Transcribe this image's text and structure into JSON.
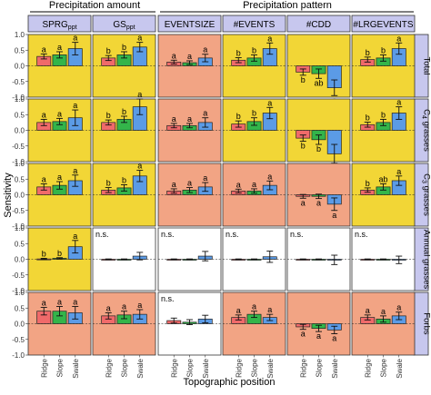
{
  "figure": {
    "group_headers": [
      "Precipitation amount",
      "Precipitation pattern"
    ],
    "ylabel": "Sensitivity",
    "xlabel": "Topographic position"
  },
  "colors": {
    "highlight_bg": "#f2d636",
    "neutral_bg": "#f2a484",
    "empty_bg": "#ffffff",
    "strip_bg": "#c7c7ee",
    "ridge": "#f06a6a",
    "slope": "#33b54a",
    "swale": "#5b9be6"
  },
  "chart_data": {
    "type": "bar",
    "categories": [
      "Ridge",
      "Slope",
      "Swale"
    ],
    "ylim": [
      -1,
      1
    ],
    "yticks": [
      "-1.0",
      "-0.5",
      "0.0",
      "0.5",
      "1.0"
    ],
    "columns": [
      {
        "label": "SPRG",
        "sub": "ppt"
      },
      {
        "label": "GS",
        "sub": "ppt"
      },
      {
        "label": "EVENTSIZE",
        "sub": ""
      },
      {
        "label": "#EVENTS",
        "sub": ""
      },
      {
        "label": "#CDD",
        "sub": ""
      },
      {
        "label": "#LRGEVENTS",
        "sub": ""
      }
    ],
    "rows": [
      "Total",
      "C4 grasses",
      "C3 grasses",
      "Annual grasses",
      "Forbs"
    ],
    "row_labels": [
      {
        "main": "Total",
        "sub": ""
      },
      {
        "main": "C",
        "sub": "4",
        "rest": " grasses"
      },
      {
        "main": "C",
        "sub": "3",
        "rest": " grasses"
      },
      {
        "main": "Annual grasses",
        "sub": ""
      },
      {
        "main": "Forbs",
        "sub": ""
      }
    ],
    "panels": [
      [
        {
          "bg": "highlight",
          "ns": false,
          "values": [
            0.3,
            0.35,
            0.55
          ],
          "errors": [
            0.08,
            0.1,
            0.2
          ],
          "letters": [
            "a",
            "a",
            "a"
          ]
        },
        {
          "bg": "highlight",
          "ns": false,
          "values": [
            0.25,
            0.35,
            0.6
          ],
          "errors": [
            0.08,
            0.1,
            0.15
          ],
          "letters": [
            "b",
            "b",
            "a"
          ]
        },
        {
          "bg": "neutral",
          "ns": false,
          "values": [
            0.12,
            0.1,
            0.25
          ],
          "errors": [
            0.06,
            0.06,
            0.12
          ],
          "letters": [
            "a",
            "a",
            "a"
          ]
        },
        {
          "bg": "highlight",
          "ns": false,
          "values": [
            0.18,
            0.25,
            0.55
          ],
          "errors": [
            0.08,
            0.1,
            0.18
          ],
          "letters": [
            "b",
            "b",
            "a"
          ]
        },
        {
          "bg": "highlight",
          "ns": false,
          "values": [
            -0.2,
            -0.25,
            -0.7
          ],
          "errors": [
            0.1,
            0.15,
            0.25
          ],
          "letters": [
            "b",
            "ab",
            "a"
          ]
        },
        {
          "bg": "highlight",
          "ns": false,
          "values": [
            0.2,
            0.25,
            0.55
          ],
          "errors": [
            0.08,
            0.1,
            0.18
          ],
          "letters": [
            "b",
            "b",
            "a"
          ]
        }
      ],
      [
        {
          "bg": "highlight",
          "ns": false,
          "values": [
            0.25,
            0.28,
            0.4
          ],
          "errors": [
            0.1,
            0.1,
            0.25
          ],
          "letters": [
            "a",
            "a",
            "a"
          ]
        },
        {
          "bg": "highlight",
          "ns": false,
          "values": [
            0.25,
            0.35,
            0.75
          ],
          "errors": [
            0.08,
            0.1,
            0.25
          ],
          "letters": [
            "b",
            "b",
            "a"
          ]
        },
        {
          "bg": "neutral",
          "ns": false,
          "values": [
            0.15,
            0.15,
            0.25
          ],
          "errors": [
            0.07,
            0.07,
            0.15
          ],
          "letters": [
            "a",
            "a",
            "a"
          ]
        },
        {
          "bg": "highlight",
          "ns": false,
          "values": [
            0.2,
            0.28,
            0.55
          ],
          "errors": [
            0.1,
            0.12,
            0.18
          ],
          "letters": [
            "b",
            "b",
            "a"
          ]
        },
        {
          "bg": "highlight",
          "ns": false,
          "values": [
            -0.25,
            -0.3,
            -0.75
          ],
          "errors": [
            0.1,
            0.15,
            0.3
          ],
          "letters": [
            "b",
            "b",
            "a"
          ]
        },
        {
          "bg": "highlight",
          "ns": false,
          "values": [
            0.18,
            0.25,
            0.55
          ],
          "errors": [
            0.08,
            0.1,
            0.2
          ],
          "letters": [
            "b",
            "b",
            "a"
          ]
        }
      ],
      [
        {
          "bg": "highlight",
          "ns": false,
          "values": [
            0.25,
            0.3,
            0.45
          ],
          "errors": [
            0.1,
            0.12,
            0.18
          ],
          "letters": [
            "a",
            "a",
            "a"
          ]
        },
        {
          "bg": "highlight",
          "ns": false,
          "values": [
            0.15,
            0.22,
            0.6
          ],
          "errors": [
            0.08,
            0.1,
            0.18
          ],
          "letters": [
            "b",
            "b",
            "a"
          ]
        },
        {
          "bg": "neutral",
          "ns": false,
          "values": [
            0.12,
            0.15,
            0.25
          ],
          "errors": [
            0.07,
            0.08,
            0.14
          ],
          "letters": [
            "a",
            "a",
            "a"
          ]
        },
        {
          "bg": "neutral",
          "ns": false,
          "values": [
            0.12,
            0.12,
            0.3
          ],
          "errors": [
            0.06,
            0.07,
            0.14
          ],
          "letters": [
            "a",
            "a",
            "a"
          ]
        },
        {
          "bg": "neutral",
          "ns": false,
          "values": [
            -0.05,
            -0.05,
            -0.3
          ],
          "errors": [
            0.06,
            0.07,
            0.2
          ],
          "letters": [
            "a",
            "a",
            "a"
          ]
        },
        {
          "bg": "highlight",
          "ns": false,
          "values": [
            0.15,
            0.25,
            0.45
          ],
          "errors": [
            0.07,
            0.1,
            0.15
          ],
          "letters": [
            "b",
            "ab",
            "a"
          ]
        }
      ],
      [
        {
          "bg": "highlight",
          "ns": false,
          "values": [
            0.01,
            0.03,
            0.4
          ],
          "errors": [
            0.02,
            0.02,
            0.2
          ],
          "letters": [
            "b",
            "b",
            "a"
          ]
        },
        {
          "bg": "empty",
          "ns": true,
          "values": [
            0.0,
            0.0,
            0.1
          ],
          "errors": [
            0.01,
            0.01,
            0.12
          ],
          "letters": [
            "",
            "",
            ""
          ]
        },
        {
          "bg": "empty",
          "ns": true,
          "values": [
            0.0,
            0.0,
            0.1
          ],
          "errors": [
            0.01,
            0.01,
            0.15
          ],
          "letters": [
            "",
            "",
            ""
          ]
        },
        {
          "bg": "empty",
          "ns": true,
          "values": [
            0.0,
            0.0,
            0.08
          ],
          "errors": [
            0.01,
            0.01,
            0.18
          ],
          "letters": [
            "",
            "",
            ""
          ]
        },
        {
          "bg": "empty",
          "ns": true,
          "values": [
            0.0,
            0.0,
            -0.02
          ],
          "errors": [
            0.01,
            0.01,
            0.15
          ],
          "letters": [
            "",
            "",
            ""
          ]
        },
        {
          "bg": "empty",
          "ns": true,
          "values": [
            0.0,
            0.0,
            -0.02
          ],
          "errors": [
            0.01,
            0.01,
            0.12
          ],
          "letters": [
            "",
            "",
            ""
          ]
        }
      ],
      [
        {
          "bg": "neutral",
          "ns": false,
          "values": [
            0.4,
            0.4,
            0.35
          ],
          "errors": [
            0.12,
            0.15,
            0.2
          ],
          "letters": [
            "a",
            "a",
            "a"
          ]
        },
        {
          "bg": "neutral",
          "ns": false,
          "values": [
            0.25,
            0.28,
            0.3
          ],
          "errors": [
            0.1,
            0.12,
            0.15
          ],
          "letters": [
            "a",
            "a",
            "a"
          ]
        },
        {
          "bg": "empty",
          "ns": true,
          "values": [
            0.1,
            0.05,
            0.15
          ],
          "errors": [
            0.08,
            0.08,
            0.12
          ],
          "letters": [
            "",
            "",
            ""
          ]
        },
        {
          "bg": "neutral",
          "ns": false,
          "values": [
            0.2,
            0.3,
            0.2
          ],
          "errors": [
            0.08,
            0.1,
            0.1
          ],
          "letters": [
            "a",
            "a",
            "a"
          ]
        },
        {
          "bg": "neutral",
          "ns": false,
          "values": [
            -0.1,
            -0.15,
            -0.2
          ],
          "errors": [
            0.08,
            0.1,
            0.12
          ],
          "letters": [
            "a",
            "a",
            "a"
          ]
        },
        {
          "bg": "neutral",
          "ns": false,
          "values": [
            0.2,
            0.15,
            0.25
          ],
          "errors": [
            0.08,
            0.1,
            0.12
          ],
          "letters": [
            "a",
            "a",
            "a"
          ]
        }
      ]
    ]
  }
}
